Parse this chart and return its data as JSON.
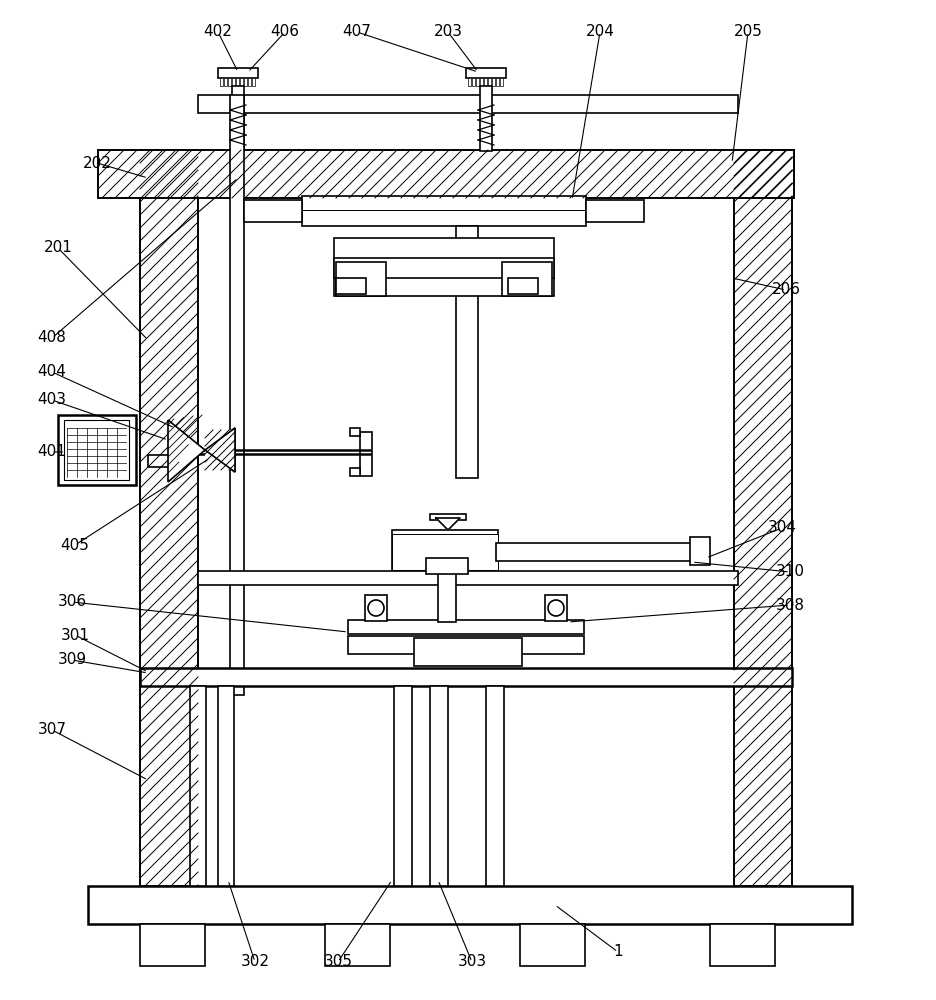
{
  "bg_color": "#ffffff",
  "lc": "#000000",
  "figsize": [
    9.37,
    10.0
  ],
  "dpi": 100,
  "annotations": [
    [
      "1",
      618,
      952,
      555,
      905
    ],
    [
      "201",
      58,
      248,
      148,
      340
    ],
    [
      "202",
      97,
      163,
      148,
      178
    ],
    [
      "203",
      448,
      32,
      478,
      72
    ],
    [
      "204",
      600,
      32,
      572,
      200
    ],
    [
      "205",
      748,
      32,
      732,
      163
    ],
    [
      "206",
      786,
      290,
      732,
      278
    ],
    [
      "301",
      75,
      635,
      148,
      672
    ],
    [
      "302",
      255,
      962,
      228,
      880
    ],
    [
      "303",
      472,
      962,
      438,
      880
    ],
    [
      "304",
      782,
      528,
      706,
      558
    ],
    [
      "305",
      338,
      962,
      392,
      880
    ],
    [
      "306",
      72,
      602,
      348,
      632
    ],
    [
      "307",
      52,
      730,
      148,
      780
    ],
    [
      "308",
      790,
      605,
      568,
      622
    ],
    [
      "309",
      72,
      660,
      148,
      673
    ],
    [
      "310",
      790,
      572,
      692,
      562
    ],
    [
      "401",
      52,
      452,
      65,
      452
    ],
    [
      "402",
      218,
      32,
      238,
      72
    ],
    [
      "403",
      52,
      400,
      168,
      440
    ],
    [
      "404",
      52,
      372,
      175,
      428
    ],
    [
      "405",
      75,
      545,
      210,
      458
    ],
    [
      "406",
      285,
      32,
      248,
      72
    ],
    [
      "407",
      357,
      32,
      478,
      72
    ],
    [
      "408",
      52,
      338,
      238,
      178
    ]
  ]
}
